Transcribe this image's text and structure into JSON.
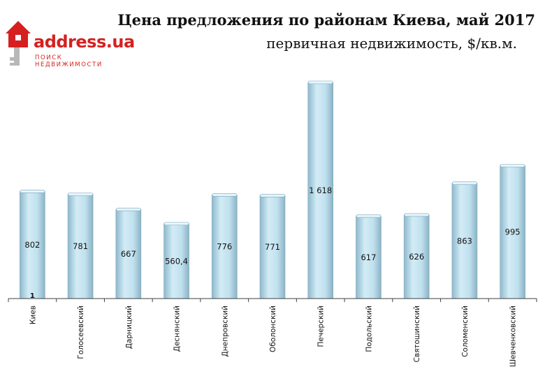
{
  "logo": {
    "brand": "address.ua",
    "tagline": "ПОИСК НЕДВИЖИМОСТИ",
    "icon": "house-key-icon",
    "color": "#d62020"
  },
  "chart_data": {
    "type": "bar",
    "title": "Цена предложения по районам Киева, май 2017",
    "subtitle": "первичная недвижимость, $/кв.м.",
    "xlabel": "",
    "ylabel": "",
    "categories": [
      "Киев",
      "Голосеевский",
      "Дарницкий",
      "Деснянский",
      "Днепровский",
      "Оболонский",
      "Печерский",
      "Подольский",
      "Святошинский",
      "Соломенский",
      "Шевченковский"
    ],
    "values": [
      802,
      781,
      667,
      560.4,
      776,
      771,
      1618,
      617,
      626,
      863,
      995
    ],
    "value_labels": [
      "802",
      "781",
      "667",
      "560,4",
      "776",
      "771",
      "1 618",
      "617",
      "626",
      "863",
      "995"
    ],
    "first_bar_annotation": "1",
    "ylim": [
      0,
      1618
    ],
    "grid": false,
    "legend": "none",
    "bar_color": "#b9dcec"
  }
}
